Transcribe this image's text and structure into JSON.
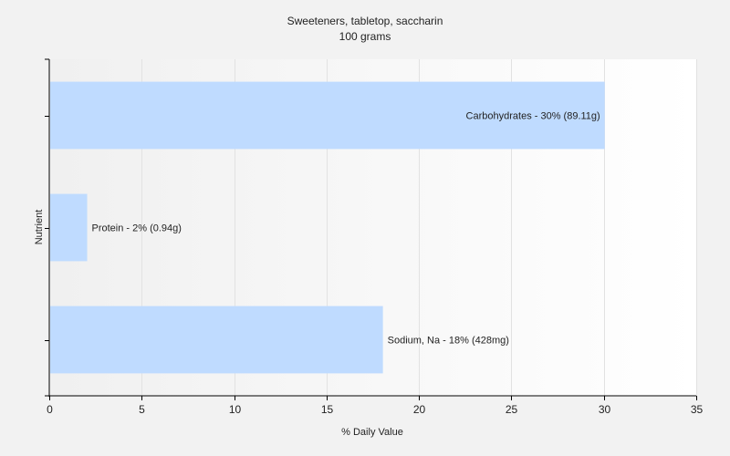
{
  "chart_data": {
    "type": "bar",
    "orientation": "horizontal",
    "title": "Sweeteners, tabletop, saccharin",
    "subtitle": "100 grams",
    "xlabel": "% Daily Value",
    "ylabel": "Nutrient",
    "xlim": [
      0,
      35
    ],
    "xticks": [
      0,
      5,
      10,
      15,
      20,
      25,
      30,
      35
    ],
    "grid": true,
    "bar_color": "#bfdbff",
    "categories": [
      "Carbohydrates",
      "Protein",
      "Sodium, Na"
    ],
    "values": [
      30,
      2,
      18
    ],
    "labels": [
      "Carbohydrates - 30% (89.11g)",
      "Protein - 2% (0.94g)",
      "Sodium, Na - 18% (428mg)"
    ]
  }
}
